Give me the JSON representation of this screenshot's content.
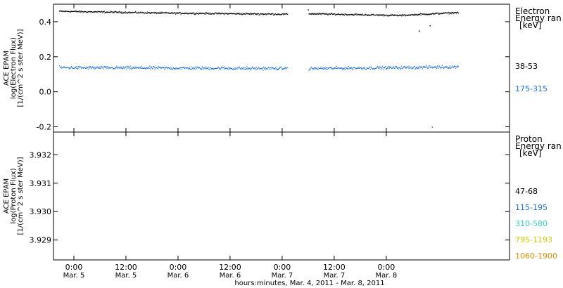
{
  "chart_data": [
    {
      "type": "scatter",
      "panel": "electron",
      "ylabel": [
        "ACE EPAM",
        "log(Electron Flux)",
        "[1/(cm^2 s ster MeV)]"
      ],
      "yticks": [
        "0.4",
        "0.2",
        "0.0",
        "-0.2"
      ],
      "ylim": [
        -0.23,
        0.5
      ],
      "legend_title": [
        "Electron",
        "Energy ran",
        "[keV]"
      ],
      "legend_placement": "right",
      "grid": false,
      "gap_hours": [
        49.2,
        54.0
      ],
      "series": [
        {
          "name": "38-53",
          "color": "#000000",
          "x_range_hours": [
            -3.4,
            88.6
          ],
          "mean_value": 0.45,
          "trend": [
            [
              -3.4,
              0.462
            ],
            [
              20,
              0.452
            ],
            [
              49.2,
              0.445
            ],
            [
              54,
              0.448
            ],
            [
              75,
              0.438
            ],
            [
              88.6,
              0.455
            ]
          ],
          "scatter": 0.007,
          "outliers": [
            [
              79.5,
              0.35
            ],
            [
              82.0,
              0.38
            ],
            [
              53.9,
              0.47
            ]
          ]
        },
        {
          "name": "175-315",
          "color": "#1a6fdc",
          "x_range_hours": [
            -3.4,
            88.6
          ],
          "mean_value": 0.14,
          "trend": [
            [
              -3.4,
              0.14
            ],
            [
              20,
              0.138
            ],
            [
              49.2,
              0.135
            ],
            [
              54,
              0.135
            ],
            [
              75,
              0.14
            ],
            [
              88.6,
              0.145
            ]
          ],
          "scatter": 0.013,
          "outliers": [
            [
              82.5,
              -0.2
            ]
          ]
        }
      ]
    },
    {
      "type": "scatter",
      "panel": "proton",
      "ylabel": [
        "ACE EPAM",
        "log(Proton Flux)",
        "[1/(cm^2 s ster MeV)]"
      ],
      "yticks": [
        "3.932",
        "3.931",
        "3.930",
        "3.929"
      ],
      "ylim": [
        3.9283,
        3.9328
      ],
      "legend_title": [
        "Proton",
        "Energy ran",
        "[keV]"
      ],
      "legend_placement": "right",
      "grid": false,
      "series": [
        {
          "name": "47-68",
          "color": "#000000",
          "points": []
        },
        {
          "name": "115-195",
          "color": "#1a6fdc",
          "points": []
        },
        {
          "name": "310-580",
          "color": "#33cccc",
          "points": []
        },
        {
          "name": "795-1193",
          "color": "#cccc00",
          "points": []
        },
        {
          "name": "1060-1900",
          "color": "#e08a00",
          "points": []
        }
      ]
    }
  ],
  "x_axis": {
    "unit_offset_hours_note_free": true,
    "xlim_hours": [
      -4.7,
      100.4
    ],
    "ticks": [
      {
        "hours": 0,
        "time": "0:00",
        "date": "Mar. 5"
      },
      {
        "hours": 12,
        "time": "12:00",
        "date": "Mar. 5"
      },
      {
        "hours": 24,
        "time": "0:00",
        "date": "Mar. 6"
      },
      {
        "hours": 36,
        "time": "12:00",
        "date": "Mar. 6"
      },
      {
        "hours": 48,
        "time": "0:00",
        "date": "Mar. 7"
      },
      {
        "hours": 60,
        "time": "12:00",
        "date": "Mar. 7"
      },
      {
        "hours": 72,
        "time": "0:00",
        "date": "Mar. 8"
      }
    ],
    "label": "hours:minutes, Mar. 4, 2011 - Mar. 8, 2011"
  }
}
